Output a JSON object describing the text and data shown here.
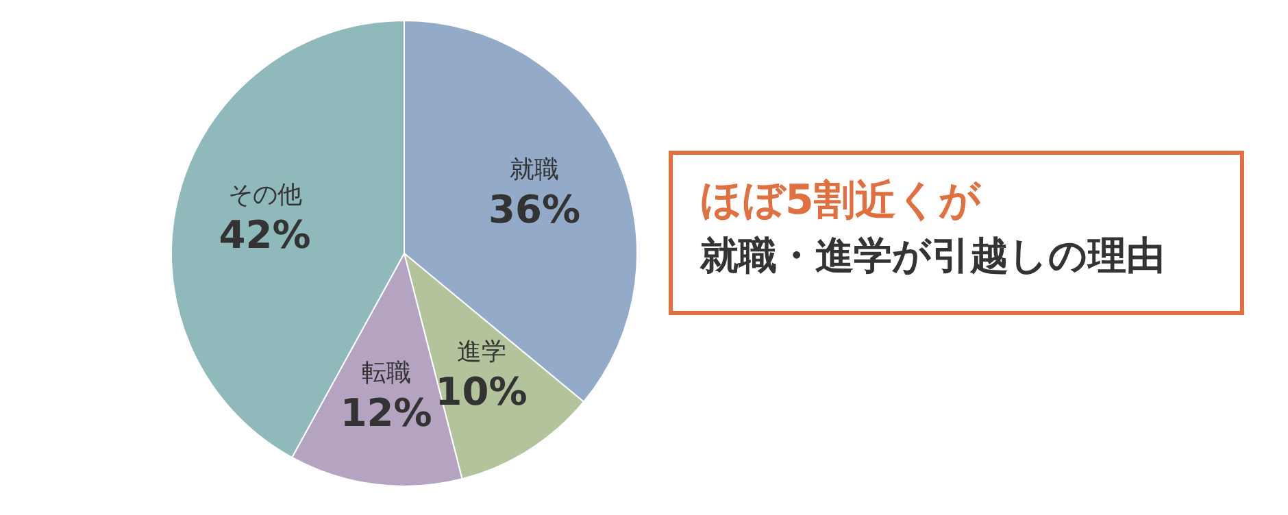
{
  "chart_data": {
    "type": "pie",
    "title": "ほぼ5割近くが",
    "subtitle": "就職・進学が引越しの理由",
    "categories": [
      "就職",
      "進学",
      "転職",
      "その他"
    ],
    "values": [
      36,
      10,
      12,
      42
    ],
    "value_labels": [
      "36%",
      "10%",
      "12%",
      "42%"
    ],
    "colors": [
      "#93aac8",
      "#b3c49c",
      "#b4a3c1",
      "#8fb9bb"
    ]
  }
}
